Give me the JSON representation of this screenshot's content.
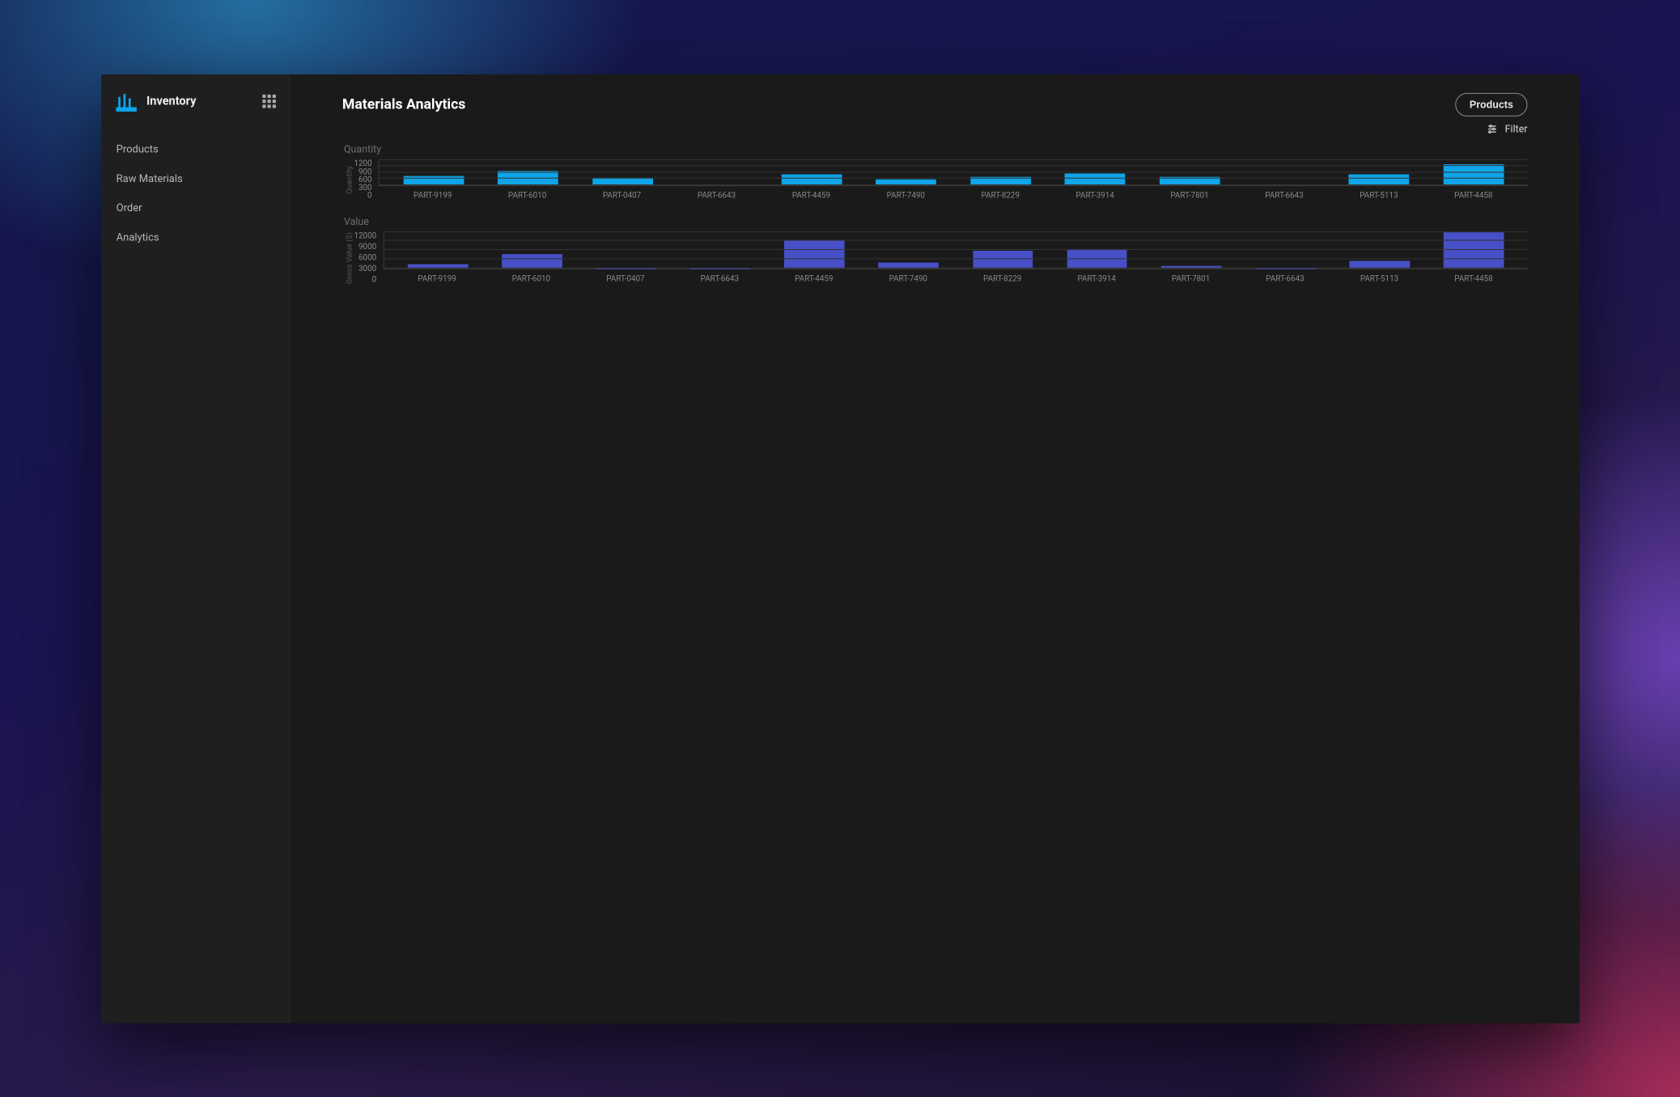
{
  "brand": {
    "title": "Inventory"
  },
  "sidebar": {
    "items": [
      {
        "label": "Products"
      },
      {
        "label": "Raw Materials"
      },
      {
        "label": "Order"
      },
      {
        "label": "Analytics"
      }
    ]
  },
  "header": {
    "title": "Materials Analytics",
    "products_button": "Products",
    "filter_label": "Filter"
  },
  "palette": {
    "bar_quantity": "#0ea5e9",
    "bar_value": "#4850c8",
    "grid": "#333333",
    "axis": "#3a3a3a",
    "text_muted": "#8a8a8a",
    "panel_bg": "#1a1a1a",
    "sidebar_bg": "#1f1f1f"
  },
  "charts": {
    "quantity": {
      "type": "bar",
      "title": "Quantity",
      "y_label": "Quantity",
      "ylim": [
        0,
        1200
      ],
      "ytick_step": 300,
      "yticks": [
        1200,
        900,
        600,
        300,
        0
      ],
      "bar_color": "#0ea5e9",
      "bar_width_pct": 64,
      "title_fontsize": 12,
      "label_fontsize": 9,
      "background_color": "#1a1a1a",
      "grid_color": "#333333",
      "categories": [
        "PART-9199",
        "PART-6010",
        "PART-0407",
        "PART-6643",
        "PART-4459",
        "PART-7490",
        "PART-8229",
        "PART-3914",
        "PART-7801",
        "PART-6643",
        "PART-5113",
        "PART-4458"
      ],
      "values": [
        430,
        680,
        340,
        30,
        500,
        250,
        400,
        530,
        400,
        25,
        510,
        1000
      ]
    },
    "value": {
      "type": "bar",
      "title": "Value",
      "y_label": "Gross Value ($)",
      "ylim": [
        0,
        12000
      ],
      "ytick_step": 3000,
      "yticks": [
        12000,
        9000,
        6000,
        3000,
        0
      ],
      "bar_color": "#4850c8",
      "bar_width_pct": 64,
      "title_fontsize": 12,
      "label_fontsize": 9,
      "background_color": "#1a1a1a",
      "grid_color": "#333333",
      "categories": [
        "PART-9199",
        "PART-6010",
        "PART-0407",
        "PART-6643",
        "PART-4459",
        "PART-7490",
        "PART-8229",
        "PART-3914",
        "PART-7801",
        "PART-6643",
        "PART-5113",
        "PART-4458"
      ],
      "values": [
        1400,
        4800,
        50,
        120,
        9500,
        1900,
        5700,
        6300,
        900,
        80,
        2600,
        12000
      ]
    }
  }
}
